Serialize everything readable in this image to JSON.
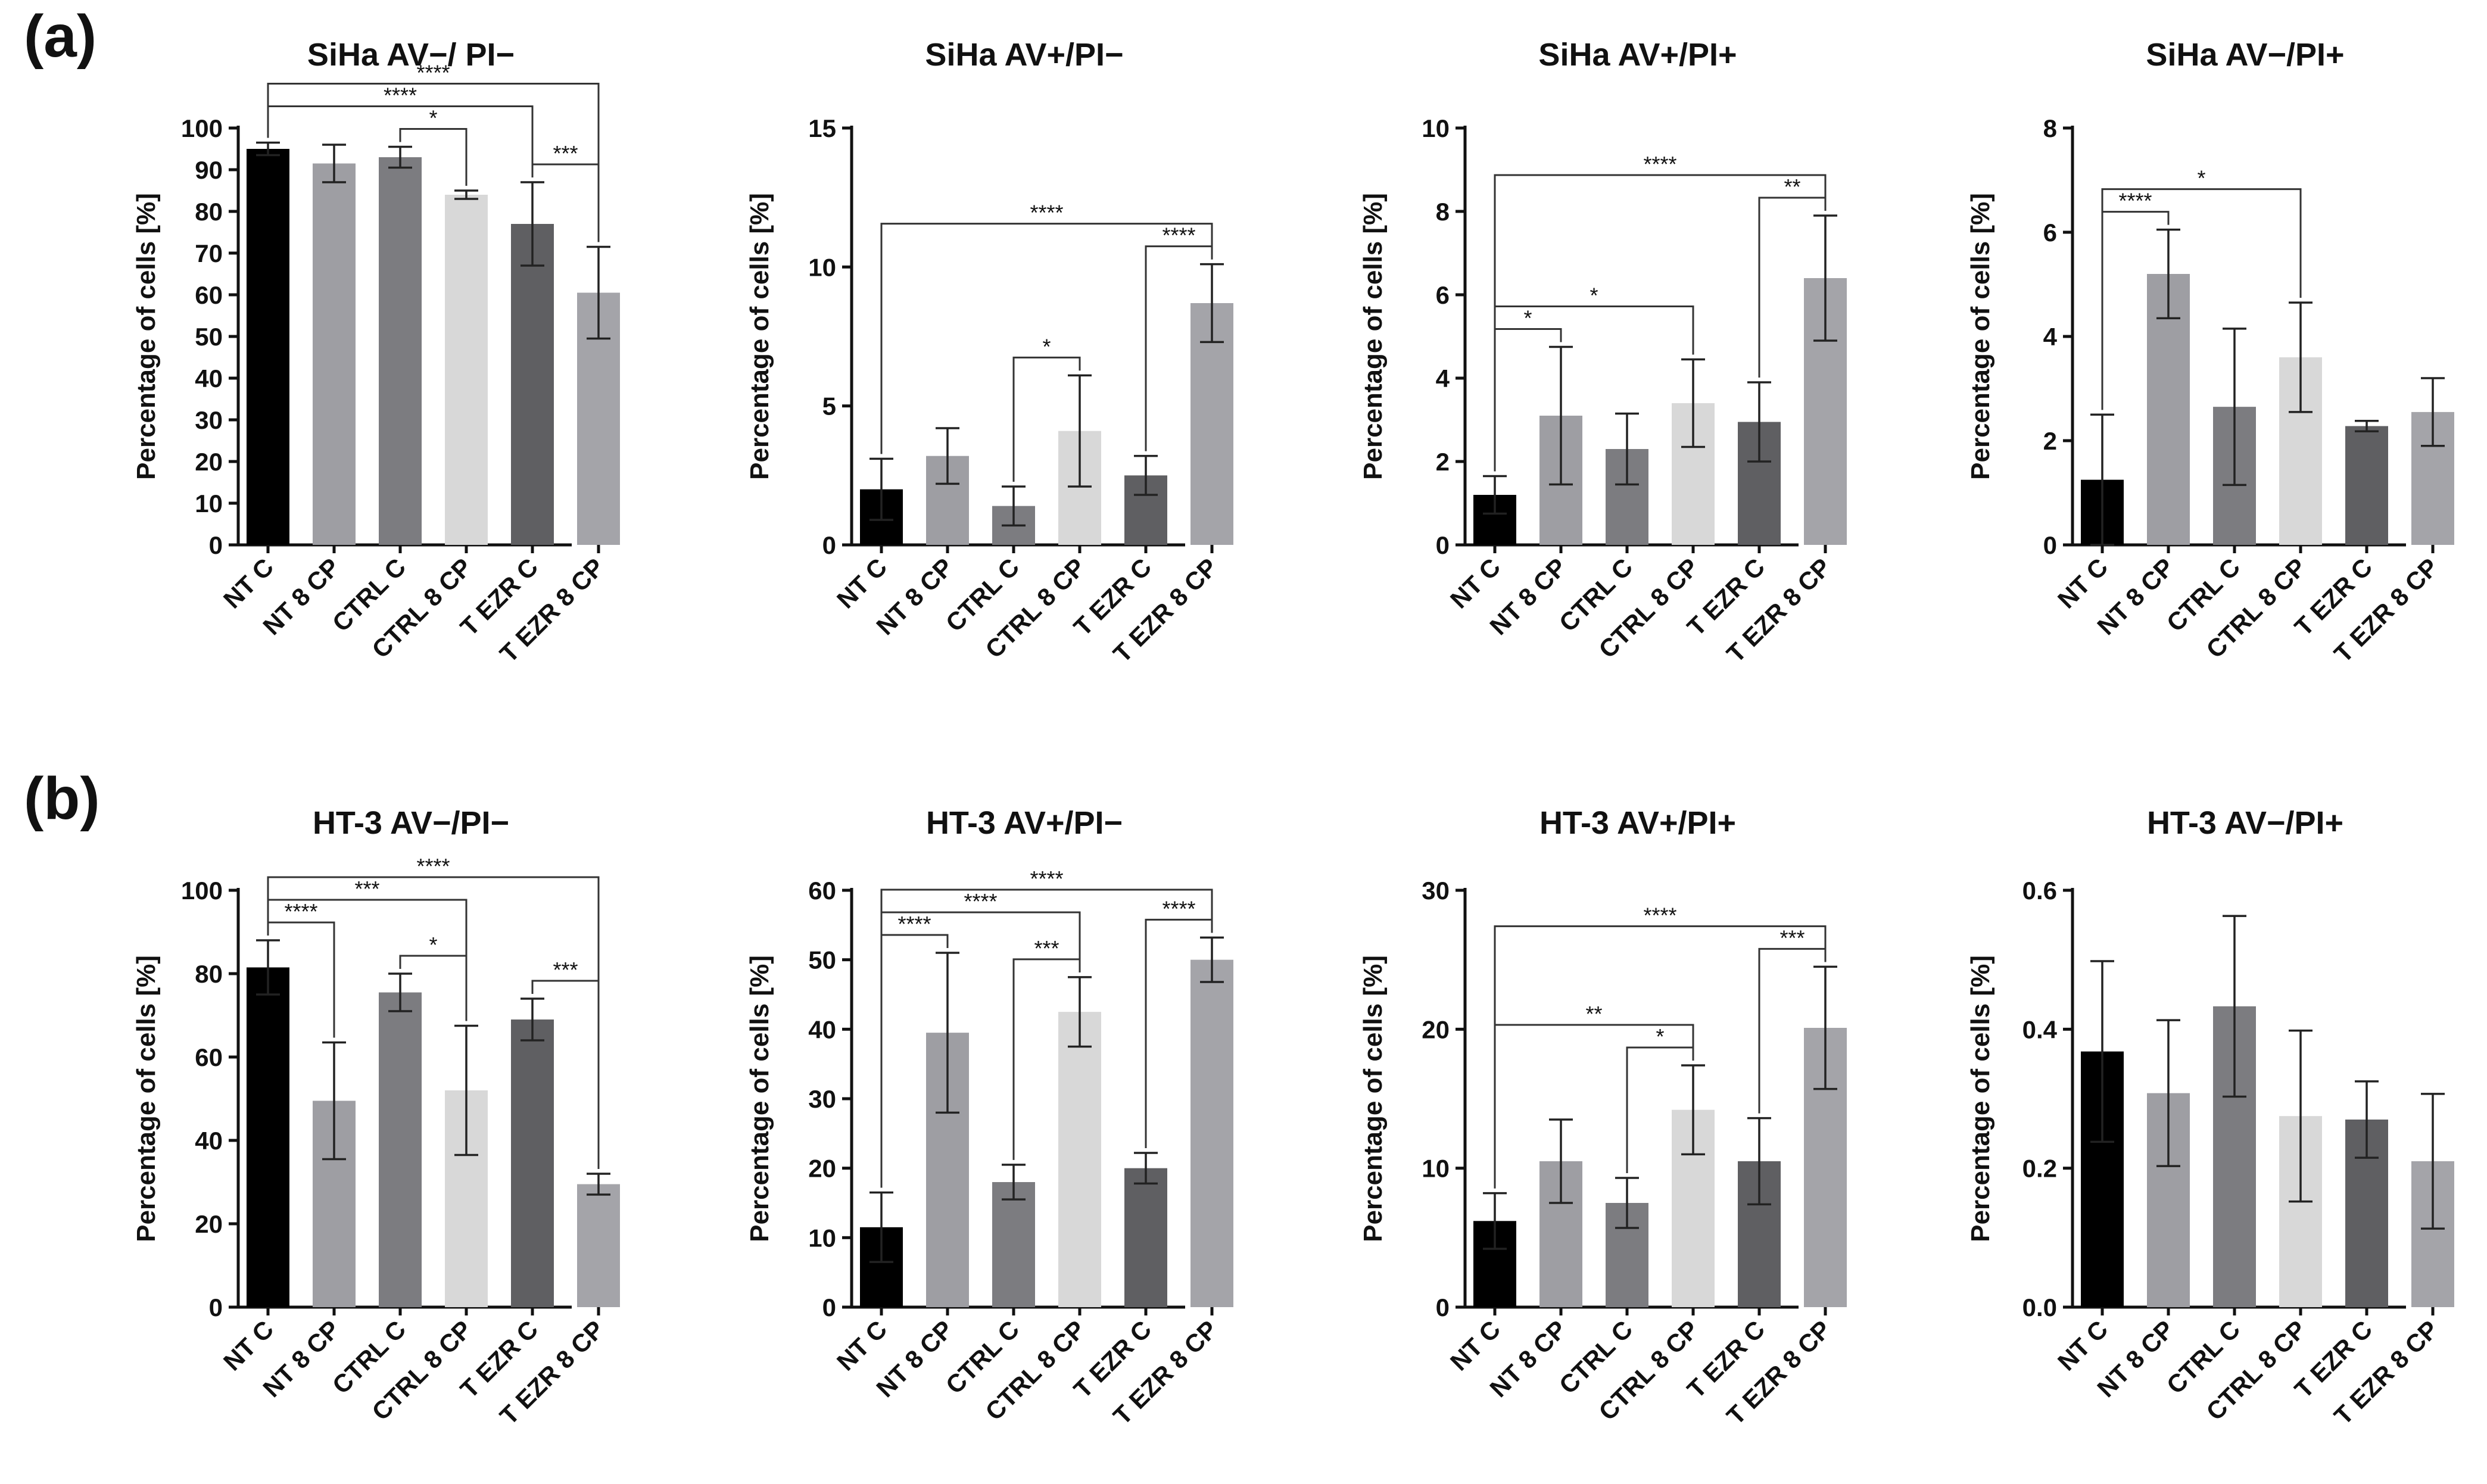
{
  "figure": {
    "panel_labels": [
      "(a)",
      "(b)"
    ],
    "categories": [
      "NT C",
      "NT 8 CP",
      "CTRL C",
      "CTRL 8 CP",
      "T EZR C",
      "T EZR 8 CP"
    ],
    "bar_colors": [
      "#000000",
      "#9e9ea3",
      "#7c7c80",
      "#d8d8d8",
      "#5f5f62",
      "#a4a4a9"
    ],
    "ylabel": "Percentage of cells [%]"
  },
  "chart_data": [
    {
      "type": "bar",
      "title": "SiHa AV−/ PI−",
      "ylim": [
        0,
        100
      ],
      "yticks": [
        "0",
        "10",
        "20",
        "30",
        "40",
        "50",
        "60",
        "70",
        "80",
        "90",
        "100"
      ],
      "values": [
        95,
        91.5,
        93,
        84,
        77,
        60.5
      ],
      "errors": [
        1.5,
        4.5,
        2.5,
        1,
        10,
        11
      ],
      "significance": [
        {
          "from": 0,
          "to": 5,
          "label": "****"
        },
        {
          "from": 0,
          "to": 4,
          "label": "****"
        },
        {
          "from": 2,
          "to": 3,
          "label": "*"
        },
        {
          "from": 4,
          "to": 5,
          "label": "***"
        }
      ]
    },
    {
      "type": "bar",
      "title": "SiHa AV+/PI−",
      "ylim": [
        0,
        15
      ],
      "yticks": [
        "0",
        "5",
        "10",
        "15"
      ],
      "values": [
        2,
        3.2,
        1.4,
        4.1,
        2.5,
        8.7
      ],
      "errors": [
        1.1,
        1.0,
        0.7,
        2.0,
        0.7,
        1.4
      ],
      "significance": [
        {
          "from": 0,
          "to": 5,
          "label": "****"
        },
        {
          "from": 4,
          "to": 5,
          "label": "****"
        },
        {
          "from": 2,
          "to": 3,
          "label": "*"
        }
      ]
    },
    {
      "type": "bar",
      "title": "SiHa AV+/PI+",
      "ylim": [
        0,
        10
      ],
      "yticks": [
        "0",
        "2",
        "4",
        "6",
        "8",
        "10"
      ],
      "values": [
        1.2,
        3.1,
        2.3,
        3.4,
        2.95,
        6.4
      ],
      "errors": [
        0.45,
        1.65,
        0.85,
        1.05,
        0.95,
        1.5
      ],
      "significance": [
        {
          "from": 0,
          "to": 5,
          "label": "****"
        },
        {
          "from": 4,
          "to": 5,
          "label": "**"
        },
        {
          "from": 0,
          "to": 3,
          "label": "*"
        },
        {
          "from": 0,
          "to": 1,
          "label": "*"
        }
      ]
    },
    {
      "type": "bar",
      "title": "SiHa AV−/PI+",
      "ylim": [
        0,
        8
      ],
      "yticks": [
        "0",
        "2",
        "4",
        "6",
        "8"
      ],
      "values": [
        1.25,
        5.2,
        2.65,
        3.6,
        2.28,
        2.55
      ],
      "errors": [
        1.25,
        0.85,
        1.5,
        1.05,
        0.1,
        0.65
      ],
      "significance": [
        {
          "from": 0,
          "to": 3,
          "label": "*"
        },
        {
          "from": 0,
          "to": 1,
          "label": "****"
        }
      ]
    },
    {
      "type": "bar",
      "title": "HT-3 AV−/PI−",
      "ylim": [
        0,
        100
      ],
      "yticks": [
        "0",
        "20",
        "40",
        "60",
        "80",
        "100"
      ],
      "values": [
        81.5,
        49.5,
        75.5,
        52,
        69,
        29.5
      ],
      "errors": [
        6.5,
        14,
        4.5,
        15.5,
        5,
        2.5
      ],
      "significance": [
        {
          "from": 0,
          "to": 5,
          "label": "****"
        },
        {
          "from": 0,
          "to": 3,
          "label": "***"
        },
        {
          "from": 0,
          "to": 1,
          "label": "****"
        },
        {
          "from": 2,
          "to": 3,
          "label": "*"
        },
        {
          "from": 4,
          "to": 5,
          "label": "***"
        }
      ]
    },
    {
      "type": "bar",
      "title": "HT-3 AV+/PI−",
      "ylim": [
        0,
        60
      ],
      "yticks": [
        "0",
        "10",
        "20",
        "30",
        "40",
        "50",
        "60"
      ],
      "values": [
        11.5,
        39.5,
        18,
        42.5,
        20,
        50
      ],
      "errors": [
        5,
        11.5,
        2.5,
        5,
        2.2,
        3.2
      ],
      "significance": [
        {
          "from": 0,
          "to": 5,
          "label": "****"
        },
        {
          "from": 0,
          "to": 3,
          "label": "****"
        },
        {
          "from": 0,
          "to": 1,
          "label": "****"
        },
        {
          "from": 2,
          "to": 3,
          "label": "***"
        },
        {
          "from": 4,
          "to": 5,
          "label": "****"
        }
      ]
    },
    {
      "type": "bar",
      "title": "HT-3 AV+/PI+",
      "ylim": [
        0,
        30
      ],
      "yticks": [
        "0",
        "10",
        "20",
        "30"
      ],
      "values": [
        6.2,
        10.5,
        7.5,
        14.2,
        10.5,
        20.1
      ],
      "errors": [
        2,
        3,
        1.8,
        3.2,
        3.1,
        4.4
      ],
      "significance": [
        {
          "from": 0,
          "to": 5,
          "label": "****"
        },
        {
          "from": 0,
          "to": 3,
          "label": "**"
        },
        {
          "from": 2,
          "to": 3,
          "label": "*"
        },
        {
          "from": 4,
          "to": 5,
          "label": "***"
        }
      ]
    },
    {
      "type": "bar",
      "title": "HT-3 AV−/PI+",
      "ylim": [
        0,
        0.6
      ],
      "yticks": [
        "0.0",
        "0.2",
        "0.4",
        "0.6"
      ],
      "values": [
        0.368,
        0.308,
        0.433,
        0.275,
        0.27,
        0.21
      ],
      "errors": [
        0.13,
        0.105,
        0.13,
        0.123,
        0.055,
        0.097
      ],
      "significance": []
    }
  ]
}
